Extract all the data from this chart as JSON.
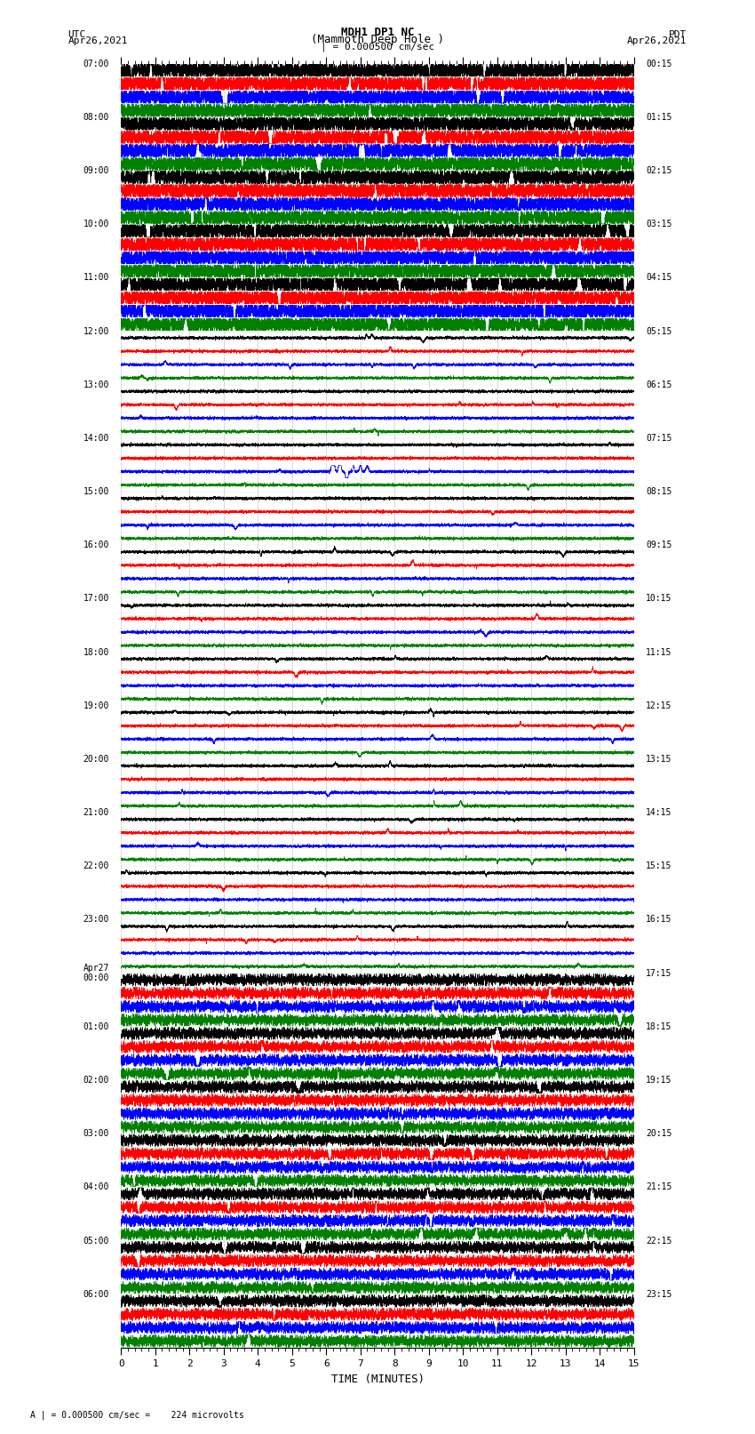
{
  "title_line1": "MDH1 DP1 NC",
  "title_line2": "(Mammoth Deep Hole )",
  "title_line3": "| = 0.000500 cm/sec",
  "label_utc": "UTC",
  "label_pdt": "PDT",
  "label_date_left": "Apr26,2021",
  "label_date_right": "Apr26,2021",
  "xlabel": "TIME (MINUTES)",
  "footer": "A | = 0.000500 cm/sec =    224 microvolts",
  "time_min": 0,
  "time_max": 15,
  "background_color": "#ffffff",
  "trace_colors": [
    "black",
    "red",
    "blue",
    "green"
  ],
  "utc_times_left": [
    "07:00",
    "08:00",
    "09:00",
    "10:00",
    "11:00",
    "12:00",
    "13:00",
    "14:00",
    "15:00",
    "16:00",
    "17:00",
    "18:00",
    "19:00",
    "20:00",
    "21:00",
    "22:00",
    "23:00",
    "Apr27\n00:00",
    "01:00",
    "02:00",
    "03:00",
    "04:00",
    "05:00",
    "06:00"
  ],
  "pdt_times_right": [
    "00:15",
    "01:15",
    "02:15",
    "03:15",
    "04:15",
    "05:15",
    "06:15",
    "07:15",
    "08:15",
    "09:15",
    "10:15",
    "11:15",
    "12:15",
    "13:15",
    "14:15",
    "15:15",
    "16:15",
    "17:15",
    "18:15",
    "19:15",
    "20:15",
    "21:15",
    "22:15",
    "23:15"
  ],
  "n_rows": 24,
  "traces_per_row": 4,
  "seed": 42,
  "n_points": 9000,
  "amplitude_high": 0.42,
  "amplitude_mid": 0.15,
  "amplitude_low": 0.07,
  "trace_linewidth": 0.4,
  "xtick_minor_every": 0.2
}
